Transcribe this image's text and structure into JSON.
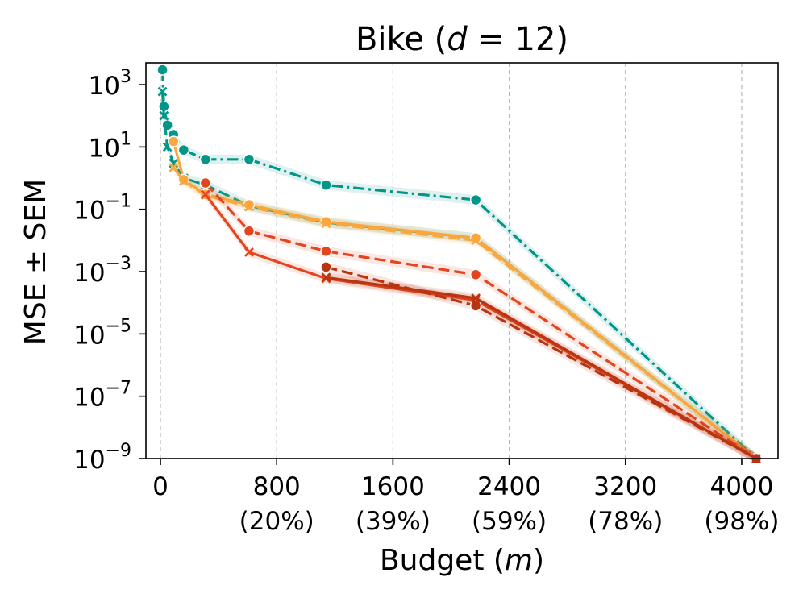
{
  "chart_data": {
    "type": "line",
    "title": "Bike (d = 12)",
    "title_prefix": "Bike (",
    "title_math": "d",
    "title_suffix": " = 12)",
    "xlabel": "Budget (m)",
    "xlabel_prefix": "Budget (",
    "xlabel_math": "m",
    "xlabel_suffix": ")",
    "ylabel": "MSE ± SEM",
    "y_scale": "log",
    "xlim": [
      -100,
      4250
    ],
    "ylim_exp": [
      -9,
      3.7
    ],
    "grid": "x-dashed",
    "x_ticks": [
      {
        "value": 0,
        "label": "0",
        "sublabel": ""
      },
      {
        "value": 800,
        "label": "800",
        "sublabel": "(20%)"
      },
      {
        "value": 1600,
        "label": "1600",
        "sublabel": "(39%)"
      },
      {
        "value": 2400,
        "label": "2400",
        "sublabel": "(59%)"
      },
      {
        "value": 3200,
        "label": "3200",
        "sublabel": "(78%)"
      },
      {
        "value": 4000,
        "label": "4000",
        "sublabel": "(98%)"
      }
    ],
    "y_ticks": [
      {
        "exp": 3,
        "base": "10",
        "sup": "3"
      },
      {
        "exp": 1,
        "base": "10",
        "sup": "1"
      },
      {
        "exp": -1,
        "base": "10",
        "sup": "−1"
      },
      {
        "exp": -3,
        "base": "10",
        "sup": "−3"
      },
      {
        "exp": -5,
        "base": "10",
        "sup": "−5"
      },
      {
        "exp": -7,
        "base": "10",
        "sup": "−7"
      },
      {
        "exp": -9,
        "base": "10",
        "sup": "−9"
      }
    ],
    "series": [
      {
        "name": "teal-dashdot-circle",
        "color": "#009688",
        "dash": "14,5,3,5",
        "marker": "circle",
        "x": [
          14,
          24,
          48,
          90,
          160,
          310,
          610,
          1140,
          2170,
          4100
        ],
        "y": [
          3000,
          200,
          50,
          25,
          8,
          4,
          4,
          0.6,
          0.2,
          1e-09
        ]
      },
      {
        "name": "teal-dashed-cross",
        "color": "#009688",
        "dash": "14,6",
        "marker": "x",
        "x": [
          14,
          24,
          48,
          90,
          160,
          310,
          610,
          1140,
          2170,
          4100
        ],
        "y": [
          600,
          100,
          10,
          3,
          1,
          0.6,
          0.13,
          0.038,
          0.012,
          1e-09
        ]
      },
      {
        "name": "orange-solid-circle",
        "color": "#F9A73E",
        "dash": "",
        "marker": "circle",
        "x": [
          90,
          160,
          310,
          610,
          1140,
          2170,
          4100
        ],
        "y": [
          15,
          0.9,
          0.3,
          0.14,
          0.04,
          0.012,
          1e-09
        ]
      },
      {
        "name": "orange-dashed-cross",
        "color": "#F9A73E",
        "dash": "14,6",
        "marker": "x",
        "x": [
          90,
          160,
          310,
          610,
          1140,
          2170,
          4100
        ],
        "y": [
          2.2,
          0.8,
          0.28,
          0.12,
          0.035,
          0.01,
          1e-09
        ]
      },
      {
        "name": "red-dashed-circle",
        "color": "#E3461E",
        "dash": "14,6",
        "marker": "circle",
        "x": [
          310,
          610,
          1140,
          2170,
          4100
        ],
        "y": [
          0.7,
          0.02,
          0.0045,
          0.0008,
          1e-09
        ]
      },
      {
        "name": "red-solid-cross",
        "color": "#E3461E",
        "dash": "",
        "marker": "x",
        "x": [
          310,
          610,
          1140,
          2170,
          4100
        ],
        "y": [
          0.3,
          0.0042,
          0.0006,
          0.00012,
          1e-09
        ]
      },
      {
        "name": "darkred-dashed-circle",
        "color": "#B83412",
        "dash": "14,6",
        "marker": "circle",
        "x": [
          1140,
          2170,
          4100
        ],
        "y": [
          0.0014,
          8e-05,
          1e-09
        ]
      },
      {
        "name": "darkred-solid-cross",
        "color": "#B83412",
        "dash": "",
        "marker": "x",
        "x": [
          1140,
          2170,
          4100
        ],
        "y": [
          0.00065,
          0.00014,
          1e-09
        ]
      }
    ]
  }
}
